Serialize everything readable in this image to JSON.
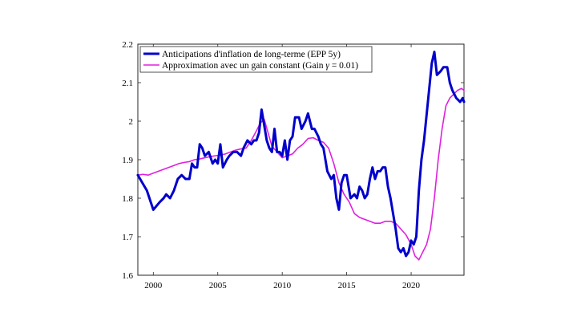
{
  "chart_data": {
    "type": "line",
    "title": "",
    "xlabel": "",
    "ylabel": "",
    "xlim": [
      1998.8,
      2024.1
    ],
    "ylim": [
      1.6,
      2.2
    ],
    "xticks": [
      2000,
      2005,
      2010,
      2015,
      2020
    ],
    "yticks": [
      1.6,
      1.7,
      1.8,
      1.9,
      2.0,
      2.1,
      2.2
    ],
    "xtick_labels": [
      "2000",
      "2005",
      "2010",
      "2015",
      "2020"
    ],
    "ytick_labels": [
      "1.6",
      "1.7",
      "1.8",
      "1.9",
      "2",
      "2.1",
      "2.2"
    ],
    "grid": false,
    "legend_position": "top-left",
    "series": [
      {
        "name": "Anticipations d'inflation de long-terme (EPP 5y)",
        "color": "#0000cc",
        "x": [
          1998.8,
          1999.5,
          2000.0,
          2000.5,
          2000.8,
          2001.0,
          2001.3,
          2001.6,
          2001.9,
          2002.2,
          2002.5,
          2002.8,
          2003.0,
          2003.2,
          2003.4,
          2003.6,
          2003.8,
          2004.0,
          2004.3,
          2004.6,
          2004.8,
          2005.0,
          2005.2,
          2005.4,
          2005.7,
          2005.9,
          2006.2,
          2006.5,
          2006.8,
          2007.0,
          2007.3,
          2007.6,
          2007.8,
          2008.0,
          2008.2,
          2008.4,
          2008.6,
          2008.8,
          2009.0,
          2009.2,
          2009.4,
          2009.6,
          2009.8,
          2010.0,
          2010.2,
          2010.4,
          2010.6,
          2010.8,
          2011.0,
          2011.3,
          2011.5,
          2011.8,
          2012.0,
          2012.3,
          2012.5,
          2012.8,
          2013.0,
          2013.2,
          2013.5,
          2013.8,
          2014.0,
          2014.2,
          2014.4,
          2014.6,
          2014.8,
          2015.0,
          2015.3,
          2015.6,
          2015.8,
          2016.0,
          2016.2,
          2016.4,
          2016.6,
          2016.8,
          2017.0,
          2017.2,
          2017.4,
          2017.6,
          2017.8,
          2018.0,
          2018.2,
          2018.4,
          2018.6,
          2018.8,
          2019.0,
          2019.2,
          2019.4,
          2019.6,
          2019.8,
          2020.0,
          2020.2,
          2020.4,
          2020.6,
          2020.8,
          2021.0,
          2021.3,
          2021.6,
          2021.8,
          2022.0,
          2022.3,
          2022.5,
          2022.8,
          2023.0,
          2023.2,
          2023.5,
          2023.8,
          2024.0,
          2024.1
        ],
        "y": [
          1.86,
          1.82,
          1.77,
          1.79,
          1.8,
          1.81,
          1.8,
          1.82,
          1.85,
          1.86,
          1.85,
          1.85,
          1.89,
          1.88,
          1.88,
          1.94,
          1.93,
          1.91,
          1.92,
          1.89,
          1.9,
          1.89,
          1.94,
          1.88,
          1.9,
          1.91,
          1.92,
          1.92,
          1.91,
          1.93,
          1.95,
          1.94,
          1.95,
          1.95,
          1.97,
          2.03,
          1.99,
          1.95,
          1.93,
          1.92,
          1.98,
          1.92,
          1.92,
          1.91,
          1.95,
          1.9,
          1.95,
          1.96,
          2.01,
          2.01,
          1.98,
          2.0,
          2.02,
          1.98,
          1.98,
          1.96,
          1.94,
          1.93,
          1.87,
          1.85,
          1.86,
          1.8,
          1.77,
          1.84,
          1.86,
          1.86,
          1.8,
          1.81,
          1.8,
          1.83,
          1.82,
          1.8,
          1.81,
          1.85,
          1.88,
          1.85,
          1.87,
          1.87,
          1.88,
          1.88,
          1.83,
          1.8,
          1.76,
          1.72,
          1.67,
          1.66,
          1.67,
          1.65,
          1.66,
          1.69,
          1.68,
          1.7,
          1.82,
          1.9,
          1.95,
          2.05,
          2.15,
          2.18,
          2.12,
          2.13,
          2.14,
          2.14,
          2.1,
          2.08,
          2.06,
          2.05,
          2.06,
          2.05
        ],
        "line_width": 3
      },
      {
        "name": "Approximation avec un gain constant (Gain γ = 0.01)",
        "color": "#e020e0",
        "x": [
          1998.8,
          1999.2,
          1999.6,
          2000.0,
          2000.4,
          2000.8,
          2001.2,
          2001.6,
          2002.0,
          2002.4,
          2002.8,
          2003.2,
          2003.6,
          2004.0,
          2004.4,
          2004.8,
          2005.2,
          2005.6,
          2006.0,
          2006.4,
          2006.8,
          2007.2,
          2007.6,
          2008.0,
          2008.3,
          2008.6,
          2008.9,
          2009.2,
          2009.6,
          2010.0,
          2010.4,
          2010.8,
          2011.2,
          2011.6,
          2012.0,
          2012.4,
          2012.8,
          2013.2,
          2013.6,
          2014.0,
          2014.4,
          2014.8,
          2015.2,
          2015.6,
          2016.0,
          2016.4,
          2016.8,
          2017.2,
          2017.6,
          2018.0,
          2018.4,
          2018.8,
          2019.2,
          2019.6,
          2020.0,
          2020.3,
          2020.6,
          2020.9,
          2021.2,
          2021.5,
          2021.8,
          2022.1,
          2022.4,
          2022.7,
          2023.0,
          2023.3,
          2023.6,
          2023.9,
          2024.1
        ],
        "y": [
          1.86,
          1.862,
          1.86,
          1.865,
          1.87,
          1.875,
          1.88,
          1.885,
          1.89,
          1.893,
          1.895,
          1.9,
          1.902,
          1.905,
          1.908,
          1.91,
          1.912,
          1.915,
          1.92,
          1.925,
          1.928,
          1.93,
          1.95,
          1.975,
          1.995,
          2.005,
          1.97,
          1.935,
          1.92,
          1.905,
          1.91,
          1.915,
          1.93,
          1.94,
          1.955,
          1.957,
          1.95,
          1.945,
          1.93,
          1.89,
          1.84,
          1.81,
          1.79,
          1.76,
          1.75,
          1.745,
          1.74,
          1.735,
          1.735,
          1.74,
          1.74,
          1.735,
          1.72,
          1.705,
          1.68,
          1.65,
          1.64,
          1.66,
          1.68,
          1.72,
          1.8,
          1.9,
          1.98,
          2.04,
          2.06,
          2.07,
          2.08,
          2.085,
          2.08
        ],
        "line_width": 1.6
      }
    ]
  },
  "legend_math": {
    "series_1_label": "Anticipations d'inflation de long-terme (EPP 5y)",
    "series_2_text_before": "Approximation avec un gain constant (Gain ",
    "series_2_symbol": "γ",
    "series_2_text_after": " = 0.01)"
  }
}
